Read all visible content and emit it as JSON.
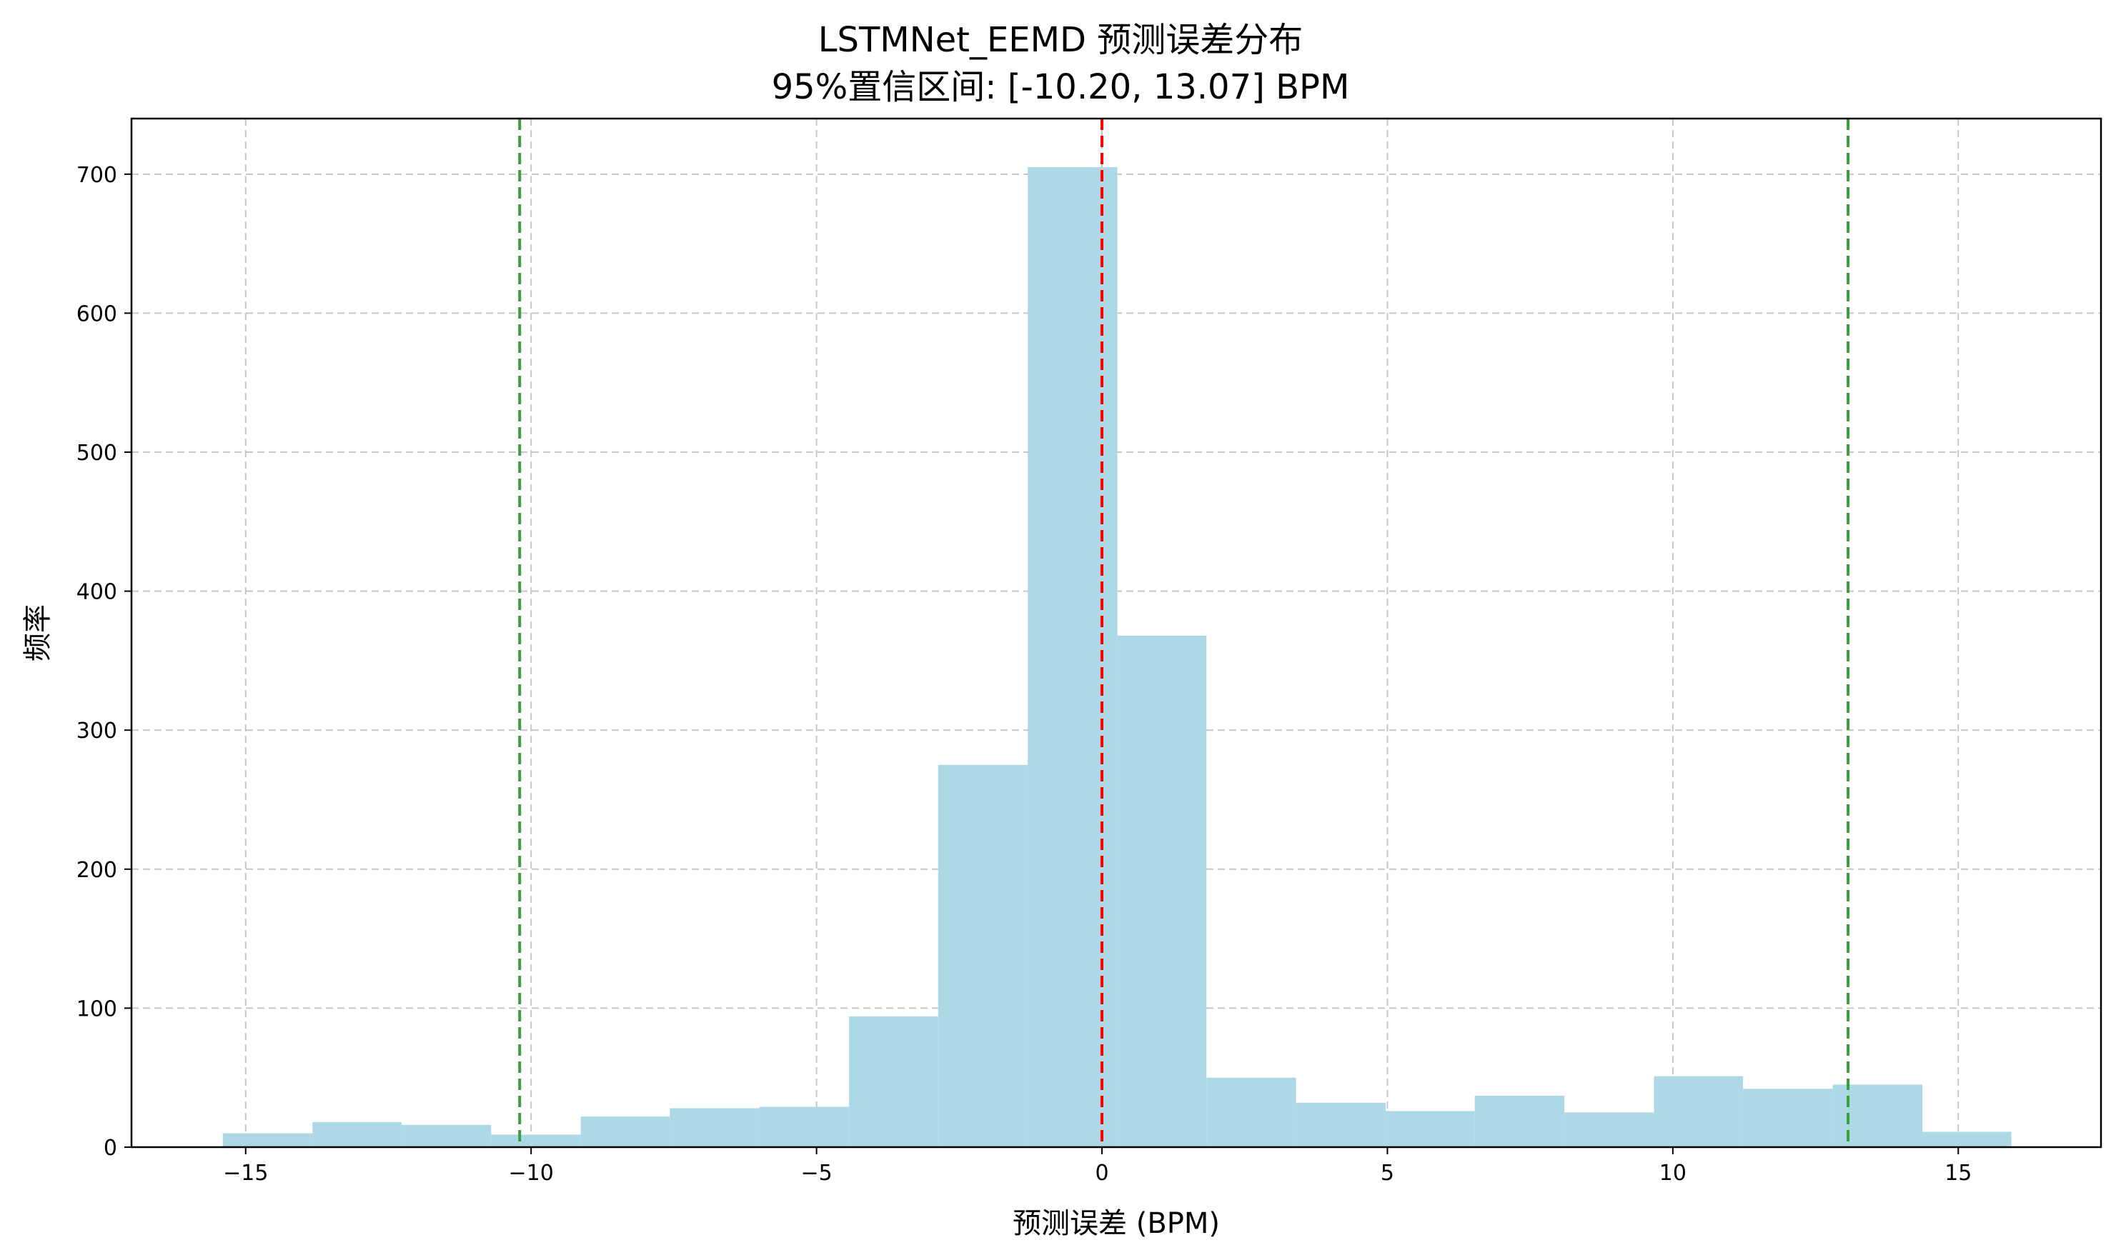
{
  "chart_data": {
    "type": "bar",
    "subtype": "histogram",
    "title": "LSTMNet_EEMD 预测误差分布",
    "subtitle": "95%置信区间: [-10.20, 13.07] BPM",
    "xlabel": "预测误差 (BPM)",
    "ylabel": "频率",
    "xlim": [
      -17,
      17.5
    ],
    "ylim": [
      0,
      740
    ],
    "xticks": [
      -15,
      -10,
      -5,
      0,
      5,
      10,
      15
    ],
    "xtick_labels": [
      "−15",
      "−10",
      "−5",
      "0",
      "5",
      "10",
      "15"
    ],
    "yticks": [
      0,
      100,
      200,
      300,
      400,
      500,
      600,
      700
    ],
    "ytick_labels": [
      "0",
      "100",
      "200",
      "300",
      "400",
      "500",
      "600",
      "700"
    ],
    "grid": true,
    "bin_edges": [
      -15.4,
      -13.83,
      -12.27,
      -10.7,
      -9.13,
      -7.57,
      -6.0,
      -4.43,
      -2.87,
      -1.3,
      0.27,
      1.83,
      3.4,
      4.97,
      6.53,
      8.1,
      9.67,
      11.23,
      12.8,
      14.37,
      15.93
    ],
    "counts": [
      10,
      18,
      16,
      9,
      22,
      28,
      29,
      94,
      275,
      705,
      368,
      50,
      32,
      26,
      37,
      25,
      51,
      42,
      45,
      11
    ],
    "bar_color": "#add8e6",
    "reference_lines": [
      {
        "name": "zero-line",
        "x": 0,
        "color": "#ff0000",
        "style": "dashed"
      },
      {
        "name": "ci-lower-line",
        "x": -10.2,
        "color": "#3a9e3a",
        "style": "dashed"
      },
      {
        "name": "ci-upper-line",
        "x": 13.07,
        "color": "#3a9e3a",
        "style": "dashed"
      }
    ]
  }
}
